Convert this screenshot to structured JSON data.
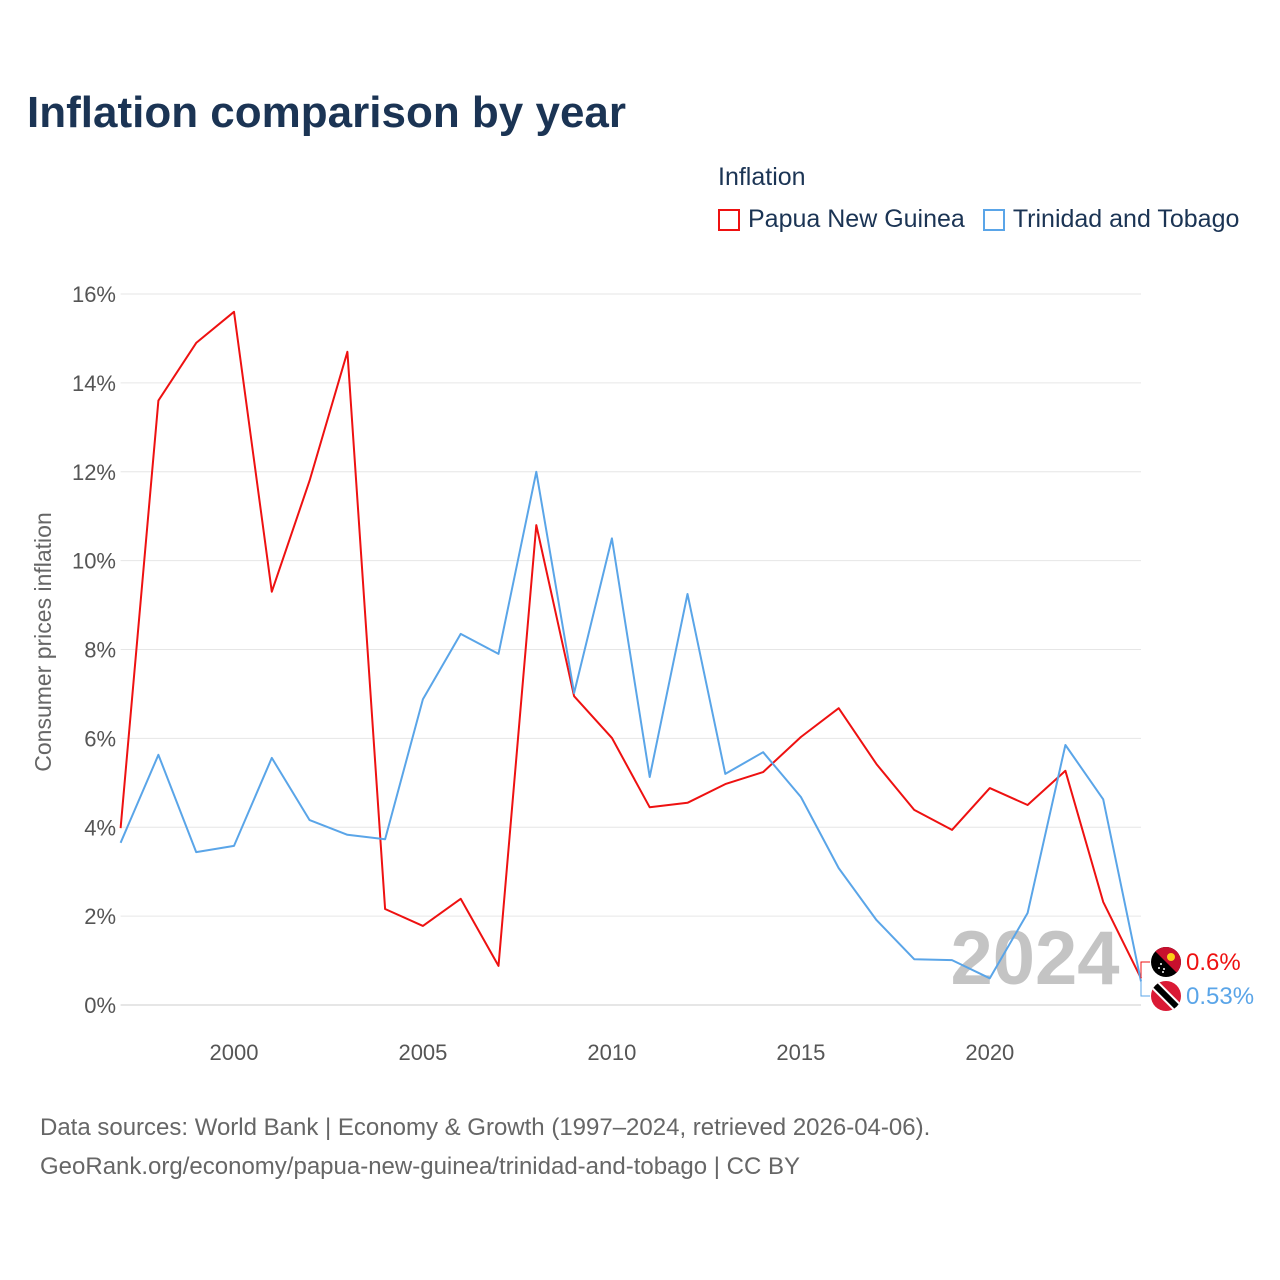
{
  "title": "Inflation comparison by year",
  "legend_title": "Inflation",
  "footer": {
    "line1": "Data sources: World Bank | Economy & Growth (1997–2024, retrieved 2026-04-06).",
    "line2": "GeoRank.org/economy/papua-new-guinea/trinidad-and-tobago | CC BY"
  },
  "chart_data": {
    "type": "line",
    "title": "Inflation comparison by year",
    "xlabel": "",
    "ylabel": "Consumer prices inflation",
    "xlim": [
      1997,
      2024
    ],
    "ylim": [
      0,
      16
    ],
    "x_ticks": [
      2000,
      2005,
      2010,
      2015,
      2020
    ],
    "y_ticks": [
      0,
      2,
      4,
      6,
      8,
      10,
      12,
      14,
      16
    ],
    "y_tick_labels": [
      "0%",
      "2%",
      "4%",
      "6%",
      "8%",
      "10%",
      "12%",
      "14%",
      "16%"
    ],
    "grid": true,
    "legend_position": "top-right",
    "watermark_year": "2024",
    "x": [
      1997,
      1998,
      1999,
      2000,
      2001,
      2002,
      2003,
      2004,
      2005,
      2006,
      2007,
      2008,
      2009,
      2010,
      2011,
      2012,
      2013,
      2014,
      2015,
      2016,
      2017,
      2018,
      2019,
      2020,
      2021,
      2022,
      2023,
      2024
    ],
    "series": [
      {
        "name": "Papua New Guinea",
        "color": "#ee1111",
        "end_label": "0.6%",
        "flag": "papua-new-guinea",
        "values": [
          3.98,
          13.6,
          14.9,
          15.6,
          9.3,
          11.8,
          14.7,
          2.16,
          1.78,
          2.39,
          0.88,
          10.8,
          6.95,
          6.01,
          4.45,
          4.55,
          4.97,
          5.24,
          6.03,
          6.68,
          5.42,
          4.39,
          3.94,
          4.88,
          4.5,
          5.27,
          2.32,
          0.6
        ]
      },
      {
        "name": "Trinidad and Tobago",
        "color": "#5aa5e8",
        "end_label": "0.53%",
        "flag": "trinidad-and-tobago",
        "values": [
          3.65,
          5.63,
          3.44,
          3.58,
          5.56,
          4.16,
          3.83,
          3.73,
          6.88,
          8.35,
          7.9,
          12.0,
          7.02,
          10.5,
          5.13,
          9.25,
          5.2,
          5.69,
          4.68,
          3.08,
          1.91,
          1.03,
          1.01,
          0.6,
          2.07,
          5.85,
          4.63,
          0.53
        ]
      }
    ]
  }
}
